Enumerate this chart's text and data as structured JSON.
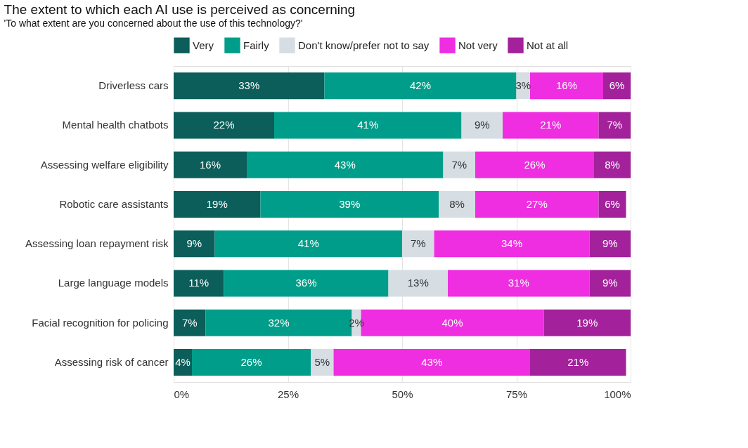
{
  "chart_data": {
    "type": "bar",
    "orientation": "horizontal",
    "stacked": true,
    "title": "The extent to which each AI use is perceived as concerning",
    "subtitle": "'To what extent are you concerned about the use of this technology?'",
    "categories": [
      "Driverless cars",
      "Mental health chatbots",
      "Assessing welfare eligibility",
      "Robotic care assistants",
      "Assessing loan repayment risk",
      "Large language models",
      "Facial recognition for policing",
      "Assessing risk of cancer"
    ],
    "series": [
      {
        "name": "Very",
        "color": "#0b5e5a",
        "values": [
          33,
          22,
          16,
          19,
          9,
          11,
          7,
          4
        ]
      },
      {
        "name": "Fairly",
        "color": "#009e8a",
        "values": [
          42,
          41,
          43,
          39,
          41,
          36,
          32,
          26
        ]
      },
      {
        "name": "Don't know/prefer not to say",
        "color": "#d6dde3",
        "values": [
          3,
          9,
          7,
          8,
          7,
          13,
          2,
          5
        ]
      },
      {
        "name": "Not very",
        "color": "#ee2ee0",
        "values": [
          16,
          21,
          26,
          27,
          34,
          31,
          40,
          43
        ]
      },
      {
        "name": "Not at all",
        "color": "#a3219a",
        "values": [
          6,
          7,
          8,
          6,
          9,
          9,
          19,
          21
        ]
      }
    ],
    "xlim": [
      0,
      100
    ],
    "xticks": [
      {
        "value": 0,
        "label": "0%"
      },
      {
        "value": 25,
        "label": "25%"
      },
      {
        "value": 50,
        "label": "50%"
      },
      {
        "value": 75,
        "label": "75%"
      },
      {
        "value": 100,
        "label": "100%"
      }
    ],
    "value_labels": [
      [
        "33%",
        "22%",
        "16%",
        "19%",
        "9%",
        "11%",
        "7%",
        "4%"
      ],
      [
        "42%",
        "41%",
        "43%",
        "39%",
        "41%",
        "36%",
        "32%",
        "26%"
      ],
      [
        "3%",
        "9%",
        "7%",
        "8%",
        "7%",
        "13%",
        "2%",
        "5%"
      ],
      [
        "16%",
        "21%",
        "26%",
        "27%",
        "34%",
        "31%",
        "40%",
        "43%"
      ],
      [
        "6%",
        "7%",
        "8%",
        "6%",
        "9%",
        "9%",
        "19%",
        "21%"
      ]
    ],
    "grid": "x",
    "legend": "top"
  }
}
